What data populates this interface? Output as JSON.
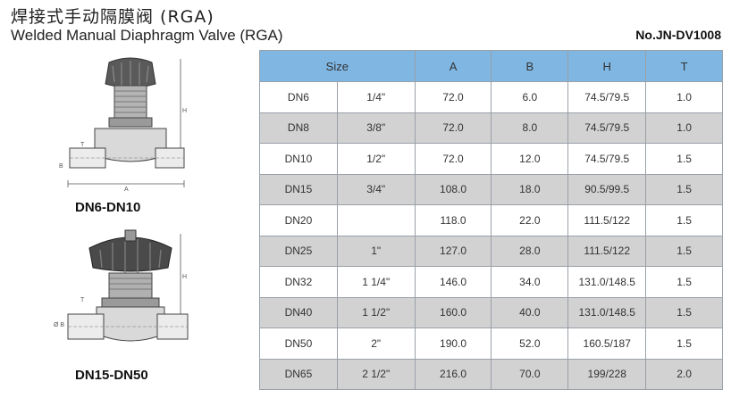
{
  "header": {
    "title_cn": "焊接式手动隔膜阀 (RGA)",
    "title_en": "Welded Manual Diaphragm Valve (RGA)",
    "model_no": "No.JN-DV1008"
  },
  "drawings": {
    "top_caption": "DN6-DN10",
    "bottom_caption": "DN15-DN50",
    "dim_labels": {
      "h": "H",
      "t": "T",
      "a": "A",
      "b": "B",
      "dia_b": "Ø B"
    }
  },
  "table": {
    "headers": [
      "Size",
      "A",
      "B",
      "H",
      "T"
    ],
    "rows": [
      [
        "DN6",
        "1/4\"",
        "72.0",
        "6.0",
        "74.5/79.5",
        "1.0"
      ],
      [
        "DN8",
        "3/8\"",
        "72.0",
        "8.0",
        "74.5/79.5",
        "1.0"
      ],
      [
        "DN10",
        "1/2\"",
        "72.0",
        "12.0",
        "74.5/79.5",
        "1.5"
      ],
      [
        "DN15",
        "3/4\"",
        "108.0",
        "18.0",
        "90.5/99.5",
        "1.5"
      ],
      [
        "DN20",
        "",
        "118.0",
        "22.0",
        "111.5/122",
        "1.5"
      ],
      [
        "DN25",
        "1\"",
        "127.0",
        "28.0",
        "111.5/122",
        "1.5"
      ],
      [
        "DN32",
        "1 1/4\"",
        "146.0",
        "34.0",
        "131.0/148.5",
        "1.5"
      ],
      [
        "DN40",
        "1 1/2\"",
        "160.0",
        "40.0",
        "131.0/148.5",
        "1.5"
      ],
      [
        "DN50",
        "2\"",
        "190.0",
        "52.0",
        "160.5/187",
        "1.5"
      ],
      [
        "DN65",
        "2 1/2\"",
        "216.0",
        "70.0",
        "199/228",
        "2.0"
      ]
    ]
  }
}
